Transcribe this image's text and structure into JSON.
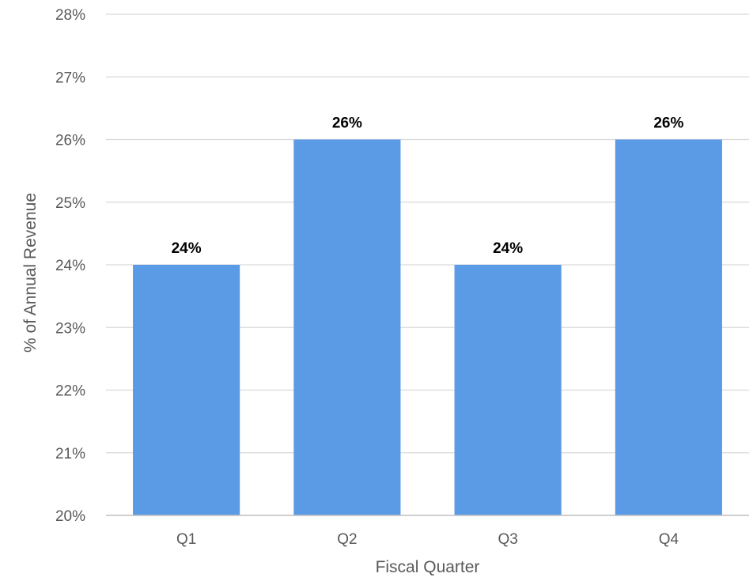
{
  "chart_data": {
    "type": "bar",
    "categories": [
      "Q1",
      "Q2",
      "Q3",
      "Q4"
    ],
    "values": [
      24,
      26,
      24,
      26
    ],
    "value_labels": [
      "24%",
      "26%",
      "24%",
      "26%"
    ],
    "title": "",
    "xlabel": "Fiscal Quarter",
    "ylabel": "% of Annual Revenue",
    "ylim": [
      20,
      28
    ],
    "yticks": [
      "20%",
      "21%",
      "22%",
      "23%",
      "24%",
      "25%",
      "26%",
      "27%",
      "28%"
    ],
    "grid": "horizontal",
    "colors": {
      "bar": "#5B9BE6",
      "grid": "#D9D9D9",
      "axis": "#BFBFBF"
    }
  }
}
